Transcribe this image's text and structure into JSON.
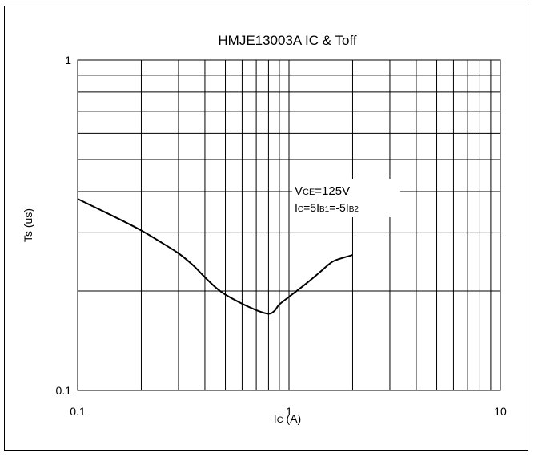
{
  "chart_data": {
    "type": "line",
    "title": "HMJE13003A IC & Toff",
    "xlabel": "IC (A)",
    "xlabel_main": "I",
    "xlabel_sub": "C",
    "xlabel_unit": " (A)",
    "ylabel": "Ts (us)",
    "x_scale": "log",
    "y_scale": "log",
    "xlim": [
      0.1,
      10
    ],
    "ylim": [
      0.1,
      1
    ],
    "x_ticks": [
      "0.1",
      "1",
      "10"
    ],
    "y_ticks": [
      "0.1",
      "1"
    ],
    "grid": true,
    "annotation": {
      "line1": {
        "a": "V",
        "b": "CE",
        "c": "=125V"
      },
      "line2": {
        "a": "I",
        "b": "C",
        "c": "=5I",
        "d": "B1",
        "e": "=-5I",
        "f": "B2"
      }
    },
    "series": [
      {
        "x": [
          0.1,
          0.15,
          0.2,
          0.25,
          0.3,
          0.35,
          0.4,
          0.45,
          0.5,
          0.6,
          0.7,
          0.78,
          0.82,
          0.86,
          0.9,
          1.0,
          1.2,
          1.4,
          1.6,
          1.8,
          2.0
        ],
        "y": [
          0.38,
          0.335,
          0.305,
          0.28,
          0.26,
          0.24,
          0.22,
          0.205,
          0.195,
          0.183,
          0.175,
          0.171,
          0.171,
          0.175,
          0.182,
          0.192,
          0.21,
          0.228,
          0.245,
          0.252,
          0.257
        ]
      }
    ]
  }
}
